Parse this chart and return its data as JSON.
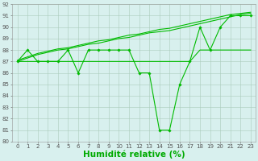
{
  "x_values": [
    0,
    1,
    2,
    3,
    4,
    5,
    6,
    7,
    8,
    9,
    10,
    11,
    12,
    13,
    14,
    15,
    16,
    17,
    18,
    19,
    20,
    21,
    22,
    23
  ],
  "y_main": [
    87,
    88,
    87,
    87,
    87,
    88,
    86,
    88,
    88,
    88,
    88,
    88,
    86,
    86,
    81,
    81,
    85,
    87,
    90,
    88,
    90,
    91,
    91,
    91
  ],
  "y_trend1": [
    87,
    87.3,
    87.6,
    87.8,
    88.0,
    88.1,
    88.3,
    88.5,
    88.6,
    88.8,
    89.0,
    89.1,
    89.3,
    89.5,
    89.6,
    89.7,
    89.9,
    90.1,
    90.3,
    90.5,
    90.7,
    90.9,
    91.1,
    91.2
  ],
  "y_trend2": [
    87.1,
    87.4,
    87.7,
    87.9,
    88.1,
    88.2,
    88.4,
    88.6,
    88.8,
    88.9,
    89.1,
    89.3,
    89.4,
    89.6,
    89.8,
    89.9,
    90.1,
    90.3,
    90.5,
    90.7,
    90.9,
    91.1,
    91.2,
    91.3
  ],
  "y_flat": [
    87,
    87,
    87,
    87,
    87,
    87,
    87,
    87,
    87,
    87,
    87,
    87,
    87,
    87,
    87,
    87,
    87,
    87,
    88,
    88,
    88,
    88,
    88,
    88
  ],
  "bg_color": "#d8f0ee",
  "grid_color": "#aaccbb",
  "line_color": "#00bb00",
  "ylim": [
    80,
    92
  ],
  "yticks": [
    80,
    81,
    82,
    83,
    84,
    85,
    86,
    87,
    88,
    89,
    90,
    91,
    92
  ],
  "xlabel": "Humidité relative (%)",
  "xlabel_color": "#00aa00",
  "xlabel_fontsize": 7.5,
  "tick_fontsize": 5.0
}
